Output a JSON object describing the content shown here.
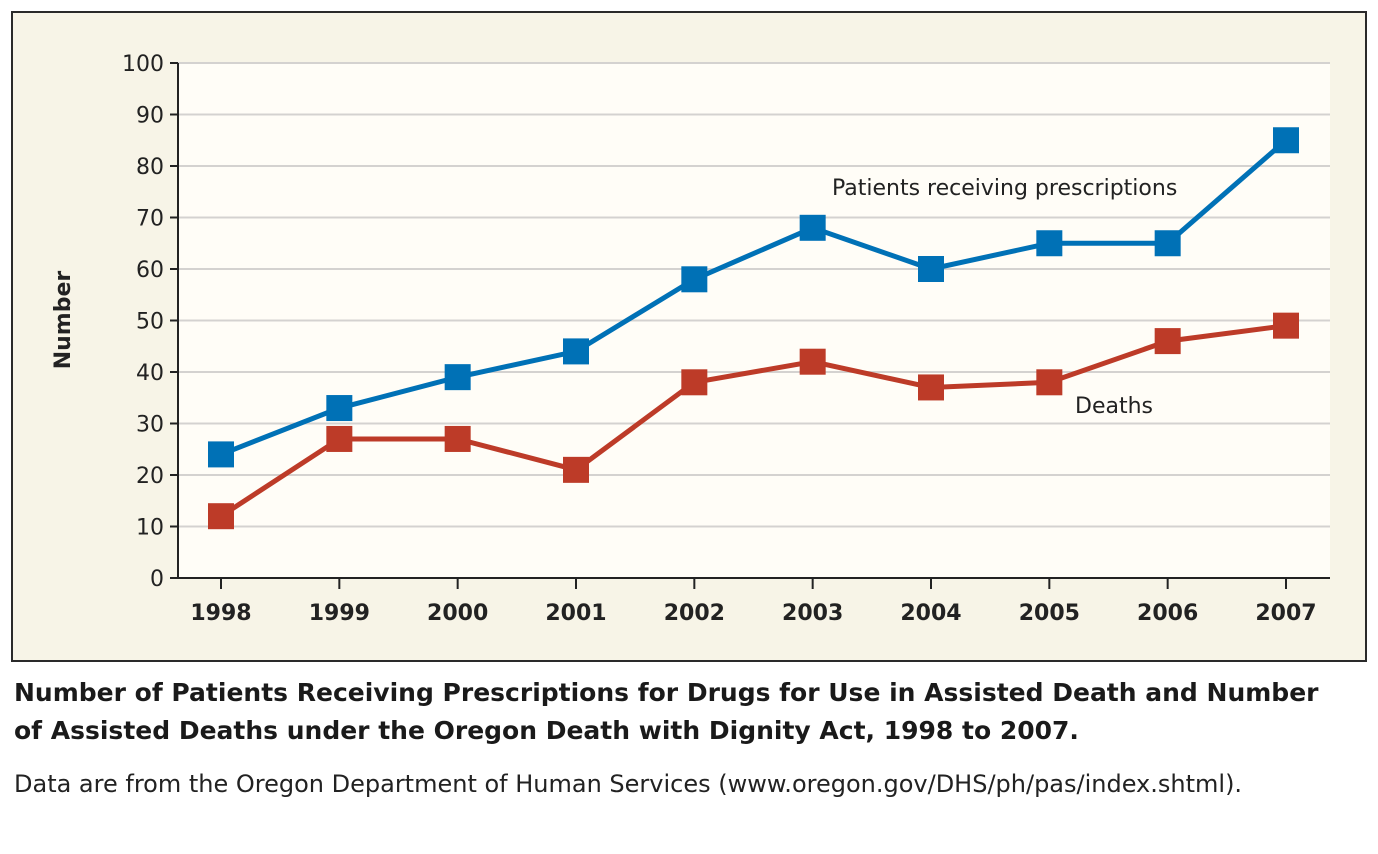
{
  "chart_data": {
    "type": "line",
    "title": "Number of Patients Receiving Prescriptions for Drugs for Use in Assisted Death and Number of Assisted Deaths under the Oregon Death with Dignity Act, 1998 to 2007.",
    "note": "Data are from the Oregon Department of Human Services (www.oregon.gov/DHS/ph/pas/index.shtml).",
    "xlabel": "",
    "ylabel": "Number",
    "x": [
      "1998",
      "1999",
      "2000",
      "2001",
      "2002",
      "2003",
      "2004",
      "2005",
      "2006",
      "2007"
    ],
    "ylim": [
      0,
      100
    ],
    "yticks": [
      0,
      10,
      20,
      30,
      40,
      50,
      60,
      70,
      80,
      90,
      100
    ],
    "grid": true,
    "series": [
      {
        "name": "Patients receiving prescriptions",
        "color": "#0071b6",
        "marker": "square",
        "values": [
          24,
          33,
          39,
          44,
          58,
          68,
          60,
          65,
          65,
          85
        ]
      },
      {
        "name": "Deaths",
        "color": "#bd3b28",
        "marker": "square",
        "values": [
          12,
          27,
          27,
          21,
          38,
          42,
          37,
          38,
          46,
          49
        ]
      }
    ],
    "colors": {
      "background": "#f7f4e7",
      "plot_background": "#fffdf7",
      "gridline": "#d4d2d0"
    }
  }
}
